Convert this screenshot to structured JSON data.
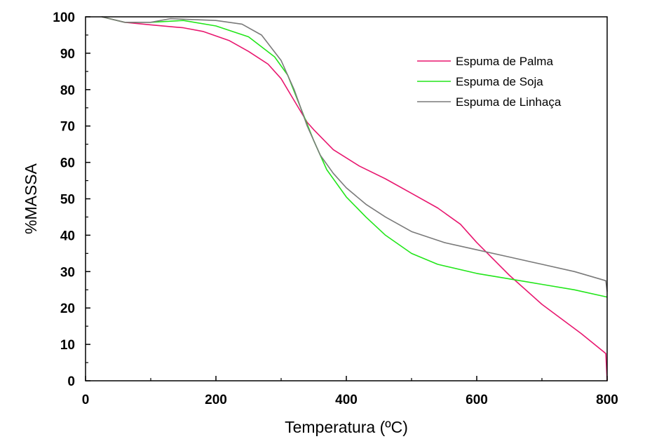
{
  "chart_data": {
    "type": "line",
    "xlabel": "Temperatura (ºC)",
    "ylabel": "%MASSA",
    "xlim": [
      0,
      800
    ],
    "ylim": [
      0,
      100
    ],
    "x_ticks": [
      0,
      200,
      400,
      600,
      800
    ],
    "y_ticks": [
      0,
      10,
      20,
      30,
      40,
      50,
      60,
      70,
      80,
      90,
      100
    ],
    "grid": false,
    "legend_position": "top-right",
    "series": [
      {
        "name": "Espuma de Palma",
        "color": "#e8176f",
        "x": [
          25,
          60,
          100,
          150,
          180,
          220,
          250,
          280,
          300,
          320,
          340,
          350,
          380,
          420,
          460,
          500,
          540,
          575,
          600,
          650,
          700,
          760,
          798,
          800
        ],
        "y": [
          100,
          98.5,
          97.8,
          97,
          96,
          93.5,
          90.5,
          87,
          83,
          77,
          71,
          69,
          63.5,
          59,
          55.5,
          51.5,
          47.5,
          43,
          38,
          29,
          21,
          13,
          7.5,
          0
        ]
      },
      {
        "name": "Espuma de Soja",
        "color": "#22e61a",
        "x": [
          25,
          60,
          100,
          150,
          200,
          250,
          290,
          310,
          330,
          350,
          370,
          400,
          430,
          460,
          500,
          540,
          600,
          650,
          700,
          750,
          800
        ],
        "y": [
          100,
          98.5,
          98.5,
          99,
          97.5,
          94.5,
          89,
          84,
          75,
          66,
          58,
          50.5,
          45,
          40,
          35,
          32,
          29.5,
          28,
          26.5,
          25,
          23
        ]
      },
      {
        "name": "Espuma de Linhaça",
        "color": "#7a7a7a",
        "x": [
          25,
          60,
          100,
          130,
          200,
          240,
          270,
          300,
          320,
          340,
          360,
          380,
          400,
          430,
          460,
          500,
          550,
          600,
          650,
          700,
          750,
          798,
          800
        ],
        "y": [
          100,
          98.5,
          98.5,
          99.5,
          99,
          98,
          95,
          88,
          80,
          70,
          62,
          57,
          53,
          48.5,
          45,
          41,
          38,
          36,
          34,
          32,
          30,
          27.5,
          24.5
        ]
      }
    ]
  }
}
